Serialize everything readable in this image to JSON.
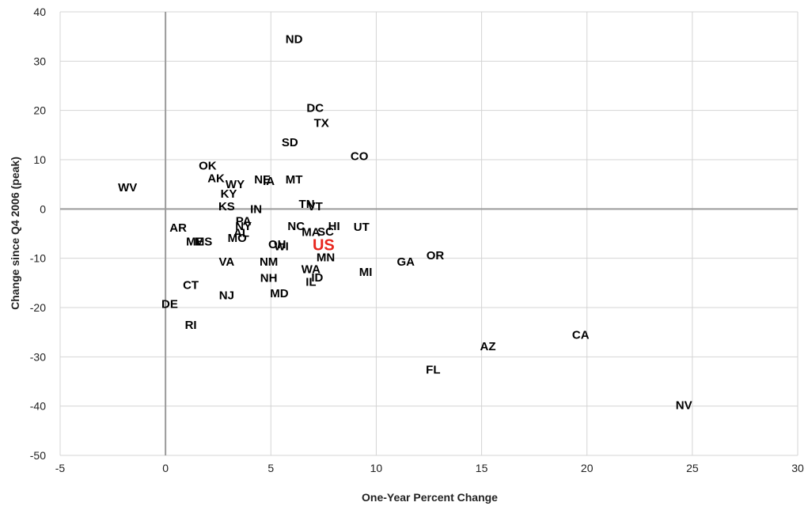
{
  "chart_data": {
    "type": "scatter",
    "title": "",
    "xlabel": "One-Year Percent Change",
    "ylabel": "Change since Q4  2006 (peak)",
    "xlim": [
      -5,
      30
    ],
    "ylim": [
      -50,
      40
    ],
    "xticks": [
      -5,
      0,
      5,
      10,
      15,
      20,
      25,
      30
    ],
    "yticks": [
      40,
      30,
      20,
      10,
      0,
      -10,
      -20,
      -30,
      -40,
      -50
    ],
    "grid": true,
    "legend": "none",
    "colors": {
      "label": "#000000",
      "highlight": "#e8261e",
      "grid": "#d4d4d4",
      "zero_axis": "#9a9a9a"
    },
    "points": [
      {
        "label": "ND",
        "x": 6.1,
        "y": 34.5
      },
      {
        "label": "DC",
        "x": 7.1,
        "y": 20.5
      },
      {
        "label": "TX",
        "x": 7.4,
        "y": 17.5
      },
      {
        "label": "SD",
        "x": 5.9,
        "y": 13.5
      },
      {
        "label": "CO",
        "x": 9.2,
        "y": 10.7
      },
      {
        "label": "OK",
        "x": 2.0,
        "y": 8.8
      },
      {
        "label": "AK",
        "x": 2.4,
        "y": 6.2
      },
      {
        "label": "NE",
        "x": 4.6,
        "y": 6.0
      },
      {
        "label": "IA",
        "x": 4.9,
        "y": 5.7
      },
      {
        "label": "MT",
        "x": 6.1,
        "y": 6.0
      },
      {
        "label": "WY",
        "x": 3.3,
        "y": 5.0
      },
      {
        "label": "WV",
        "x": -1.8,
        "y": 4.4
      },
      {
        "label": "KY",
        "x": 3.0,
        "y": 3.1
      },
      {
        "label": "TN",
        "x": 6.7,
        "y": 1.0
      },
      {
        "label": "VT",
        "x": 7.1,
        "y": 0.5
      },
      {
        "label": "KS",
        "x": 2.9,
        "y": 0.5
      },
      {
        "label": "IN",
        "x": 4.3,
        "y": 0.0
      },
      {
        "label": "PA",
        "x": 3.7,
        "y": -2.4
      },
      {
        "label": "NY",
        "x": 3.7,
        "y": -3.5
      },
      {
        "label": "AR",
        "x": 0.6,
        "y": -3.8
      },
      {
        "label": "NC",
        "x": 6.2,
        "y": -3.5
      },
      {
        "label": "HI",
        "x": 8.0,
        "y": -3.5
      },
      {
        "label": "UT",
        "x": 9.3,
        "y": -3.6
      },
      {
        "label": "AL",
        "x": 3.6,
        "y": -4.8
      },
      {
        "label": "MA",
        "x": 6.9,
        "y": -4.7
      },
      {
        "label": "SC",
        "x": 7.6,
        "y": -4.6
      },
      {
        "label": "MO",
        "x": 3.4,
        "y": -5.9
      },
      {
        "label": "ME",
        "x": 1.4,
        "y": -6.6
      },
      {
        "label": "MS",
        "x": 1.8,
        "y": -6.6
      },
      {
        "label": "OH",
        "x": 5.3,
        "y": -7.2
      },
      {
        "label": "WI",
        "x": 5.5,
        "y": -7.6
      },
      {
        "label": "US",
        "x": 7.5,
        "y": -7.6,
        "highlight": true
      },
      {
        "label": "OR",
        "x": 12.8,
        "y": -9.4
      },
      {
        "label": "MN",
        "x": 7.6,
        "y": -9.8
      },
      {
        "label": "VA",
        "x": 2.9,
        "y": -10.7
      },
      {
        "label": "NM",
        "x": 4.9,
        "y": -10.7
      },
      {
        "label": "GA",
        "x": 11.4,
        "y": -10.7
      },
      {
        "label": "WA",
        "x": 6.9,
        "y": -12.2
      },
      {
        "label": "MI",
        "x": 9.5,
        "y": -12.8
      },
      {
        "label": "ID",
        "x": 7.2,
        "y": -13.9
      },
      {
        "label": "NH",
        "x": 4.9,
        "y": -14.0
      },
      {
        "label": "IL",
        "x": 6.9,
        "y": -14.8
      },
      {
        "label": "CT",
        "x": 1.2,
        "y": -15.4
      },
      {
        "label": "MD",
        "x": 5.4,
        "y": -17.1
      },
      {
        "label": "NJ",
        "x": 2.9,
        "y": -17.5
      },
      {
        "label": "DE",
        "x": 0.2,
        "y": -19.3
      },
      {
        "label": "RI",
        "x": 1.2,
        "y": -23.5
      },
      {
        "label": "CA",
        "x": 19.7,
        "y": -25.5
      },
      {
        "label": "AZ",
        "x": 15.3,
        "y": -27.9
      },
      {
        "label": "FL",
        "x": 12.7,
        "y": -32.6
      },
      {
        "label": "NV",
        "x": 24.6,
        "y": -39.8
      }
    ]
  }
}
